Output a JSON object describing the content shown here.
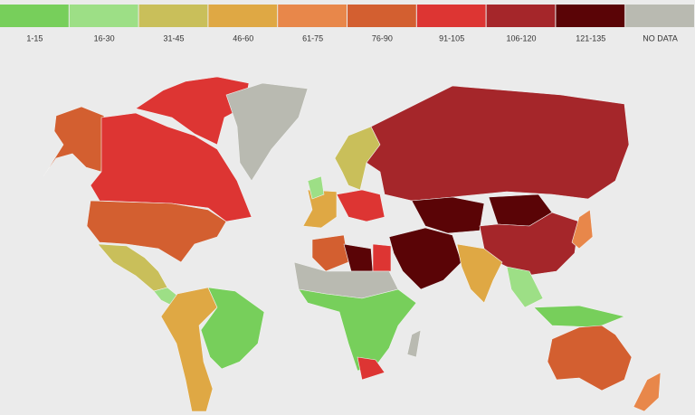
{
  "legend": {
    "items": [
      {
        "label": "1-15",
        "color": "#77cf5b"
      },
      {
        "label": "16-30",
        "color": "#9ddf86"
      },
      {
        "label": "31-45",
        "color": "#c9bf5a"
      },
      {
        "label": "46-60",
        "color": "#dfa844"
      },
      {
        "label": "61-75",
        "color": "#e8874a"
      },
      {
        "label": "76-90",
        "color": "#d35f30"
      },
      {
        "label": "91-105",
        "color": "#dd3533"
      },
      {
        "label": "106-120",
        "color": "#a5262a"
      },
      {
        "label": "121-135",
        "color": "#5a0406"
      },
      {
        "label": "NO DATA",
        "color": "#b9bab1"
      }
    ]
  }
}
